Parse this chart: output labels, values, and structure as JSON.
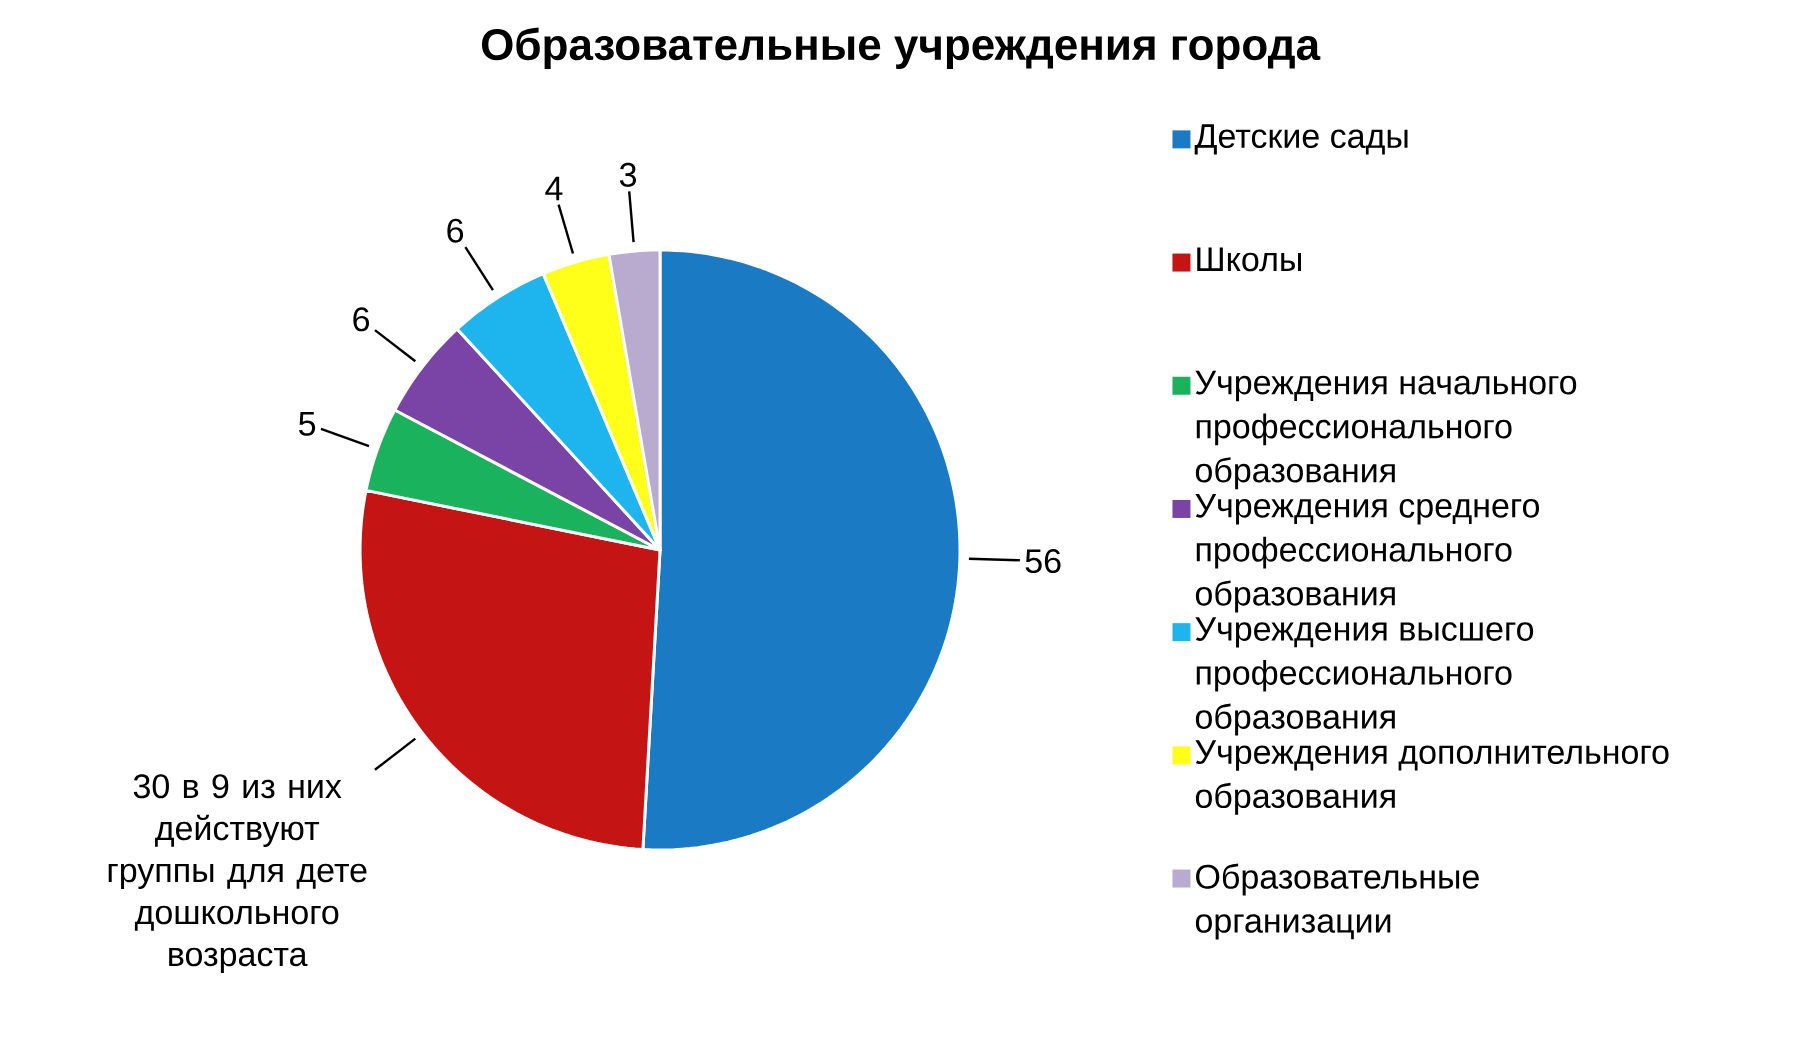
{
  "chart_data": {
    "type": "pie",
    "title": "Образовательные учреждения города",
    "categories": [
      "Детские сады",
      "Школы",
      "Учреждения начального профессионального образования",
      "Учреждения среднего профессионального образования",
      "Учреждения высшего профессионального образования",
      "Учреждения дополнительного образования",
      "Образовательные организации"
    ],
    "values": [
      56,
      30,
      5,
      6,
      6,
      4,
      3
    ],
    "colors": [
      "#1b7ac4",
      "#c41414",
      "#1bb25e",
      "#7a44a6",
      "#1eb5ee",
      "#ffff1a",
      "#b9aacf"
    ],
    "value_labels": [
      "56",
      "30 в 9 из них действуют группы для дете дошкольного возраста",
      "5",
      "6",
      "6",
      "4",
      "3"
    ],
    "legend": "right"
  }
}
